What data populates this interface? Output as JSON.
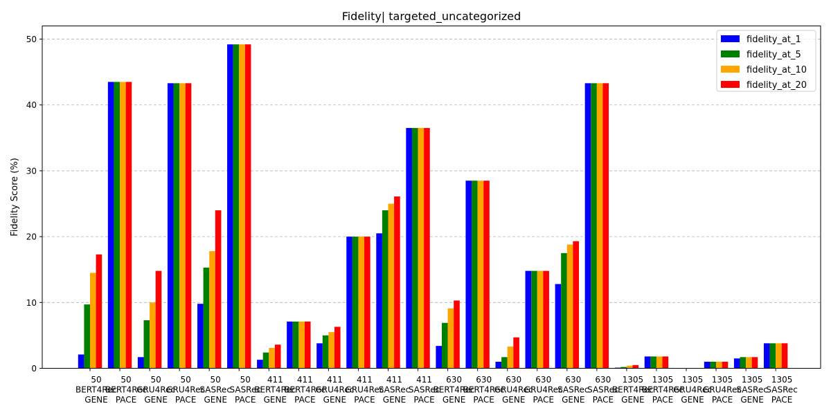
{
  "chart_data": {
    "type": "bar",
    "title": "Fidelity| targeted_uncategorized",
    "xlabel": "",
    "ylabel": "Fidelity Score (%)",
    "ylim": [
      0,
      52
    ],
    "yticks": [
      0,
      10,
      20,
      30,
      40,
      50
    ],
    "grid": "y-dashed",
    "legend_position": "top-right",
    "categories": [
      [
        "50",
        "BERT4Rec",
        "GENE"
      ],
      [
        "50",
        "BERT4Rec",
        "PACE"
      ],
      [
        "50",
        "GRU4Rec",
        "GENE"
      ],
      [
        "50",
        "GRU4Rec",
        "PACE"
      ],
      [
        "50",
        "SASRec",
        "GENE"
      ],
      [
        "50",
        "SASRec",
        "PACE"
      ],
      [
        "411",
        "BERT4Rec",
        "GENE"
      ],
      [
        "411",
        "BERT4Rec",
        "PACE"
      ],
      [
        "411",
        "GRU4Rec",
        "GENE"
      ],
      [
        "411",
        "GRU4Rec",
        "PACE"
      ],
      [
        "411",
        "SASRec",
        "GENE"
      ],
      [
        "411",
        "SASRec",
        "PACE"
      ],
      [
        "630",
        "BERT4Rec",
        "GENE"
      ],
      [
        "630",
        "BERT4Rec",
        "PACE"
      ],
      [
        "630",
        "GRU4Rec",
        "GENE"
      ],
      [
        "630",
        "GRU4Rec",
        "PACE"
      ],
      [
        "630",
        "SASRec",
        "GENE"
      ],
      [
        "630",
        "SASRec",
        "PACE"
      ],
      [
        "1305",
        "BERT4Rec",
        "GENE"
      ],
      [
        "1305",
        "BERT4Rec",
        "PACE"
      ],
      [
        "1305",
        "GRU4Rec",
        "GENE"
      ],
      [
        "1305",
        "GRU4Rec",
        "PACE"
      ],
      [
        "1305",
        "SASRec",
        "GENE"
      ],
      [
        "1305",
        "SASRec",
        "PACE"
      ]
    ],
    "series": [
      {
        "name": "fidelity_at_1",
        "color": "#0000ff",
        "values": [
          2.1,
          43.5,
          1.7,
          43.3,
          9.8,
          49.2,
          1.3,
          7.1,
          3.8,
          20.0,
          20.5,
          36.5,
          3.4,
          28.5,
          1.0,
          14.8,
          12.8,
          43.3,
          0.1,
          1.8,
          0.0,
          1.0,
          1.5,
          3.8
        ]
      },
      {
        "name": "fidelity_at_5",
        "color": "#008000",
        "values": [
          9.7,
          43.5,
          7.3,
          43.3,
          15.3,
          49.2,
          2.4,
          7.1,
          5.0,
          20.0,
          24.0,
          36.5,
          6.9,
          28.5,
          1.7,
          14.8,
          17.5,
          43.3,
          0.2,
          1.8,
          0.0,
          1.0,
          1.7,
          3.8
        ]
      },
      {
        "name": "fidelity_at_10",
        "color": "#ffa500",
        "values": [
          14.5,
          43.5,
          10.0,
          43.3,
          17.8,
          49.2,
          3.1,
          7.1,
          5.5,
          20.0,
          25.0,
          36.5,
          9.1,
          28.5,
          3.3,
          14.8,
          18.8,
          43.3,
          0.4,
          1.8,
          0.0,
          1.0,
          1.7,
          3.8
        ]
      },
      {
        "name": "fidelity_at_20",
        "color": "#ff0000",
        "values": [
          17.3,
          43.5,
          14.8,
          43.3,
          24.0,
          49.2,
          3.6,
          7.1,
          6.3,
          20.0,
          26.1,
          36.5,
          10.3,
          28.5,
          4.7,
          14.8,
          19.3,
          43.3,
          0.5,
          1.8,
          0.0,
          1.0,
          1.7,
          3.8
        ]
      }
    ]
  }
}
